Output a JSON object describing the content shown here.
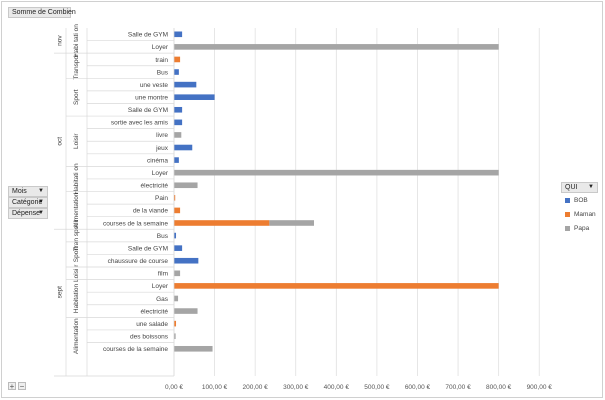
{
  "field_buttons": {
    "value": "Somme de Combien",
    "mois": "Mois",
    "categorie": "Catégorie",
    "depense": "Dépense",
    "qui": "QUI"
  },
  "zoom": {
    "plus": "+",
    "minus": "−"
  },
  "chart_data": {
    "type": "bar",
    "orientation": "horizontal",
    "stacked": true,
    "xlim": [
      0,
      900
    ],
    "x_ticks": [
      "0,00 €",
      "100,00 €",
      "200,00 €",
      "300,00 €",
      "400,00 €",
      "500,00 €",
      "600,00 €",
      "700,00 €",
      "800,00 €",
      "900,00 €"
    ],
    "grid": true,
    "legend_position": "right",
    "series": [
      {
        "name": "BOB",
        "color": "#4472c4"
      },
      {
        "name": "Maman",
        "color": "#ed7d31"
      },
      {
        "name": "Papa",
        "color": "#a5a5a5"
      }
    ],
    "months": [
      {
        "label": "nov",
        "categories": [
          {
            "label": "Habi tati on",
            "items": [
              {
                "label": "Salle de GYM",
                "values": [
                  20,
                  0,
                  0
                ]
              },
              {
                "label": "Loyer",
                "values": [
                  0,
                  0,
                  800
                ]
              }
            ]
          }
        ]
      },
      {
        "label": "oct",
        "categories": [
          {
            "label": "Transport",
            "items": [
              {
                "label": "train",
                "values": [
                  0,
                  15,
                  0
                ]
              },
              {
                "label": "Bus",
                "values": [
                  12,
                  0,
                  0
                ]
              }
            ]
          },
          {
            "label": "Sport",
            "items": [
              {
                "label": "une veste",
                "values": [
                  55,
                  0,
                  0
                ]
              },
              {
                "label": "une montre",
                "values": [
                  100,
                  0,
                  0
                ]
              },
              {
                "label": "Salle de GYM",
                "values": [
                  20,
                  0,
                  0
                ]
              }
            ]
          },
          {
            "label": "Loisir",
            "items": [
              {
                "label": "sortie avec les amis",
                "values": [
                  20,
                  0,
                  0
                ]
              },
              {
                "label": "livre",
                "values": [
                  0,
                  0,
                  18
                ]
              },
              {
                "label": "jeux",
                "values": [
                  45,
                  0,
                  0
                ]
              },
              {
                "label": "cinéma",
                "values": [
                  12,
                  0,
                  0
                ]
              }
            ]
          },
          {
            "label": "Habitati on",
            "items": [
              {
                "label": "Loyer",
                "values": [
                  0,
                  0,
                  800
                ]
              },
              {
                "label": "électricité",
                "values": [
                  0,
                  0,
                  58
                ]
              }
            ]
          },
          {
            "label": "Alimentation",
            "items": [
              {
                "label": "Pain",
                "values": [
                  0,
                  3,
                  0
                ]
              },
              {
                "label": "de la viande",
                "values": [
                  0,
                  15,
                  0
                ]
              },
              {
                "label": "courses de la semaine",
                "values": [
                  0,
                  235,
                  110
                ]
              }
            ]
          }
        ]
      },
      {
        "label": "sept",
        "categories": [
          {
            "label": "Tran spor t",
            "items": [
              {
                "label": "Bus",
                "values": [
                  5,
                  0,
                  0
                ]
              }
            ]
          },
          {
            "label": "Sport",
            "items": [
              {
                "label": "Salle de GYM",
                "values": [
                  20,
                  0,
                  0
                ]
              },
              {
                "label": "chaussure de course",
                "values": [
                  60,
                  0,
                  0
                ]
              }
            ]
          },
          {
            "label": "Loisi r",
            "items": [
              {
                "label": "film",
                "values": [
                  0,
                  0,
                  15
                ]
              }
            ]
          },
          {
            "label": "Habitation",
            "items": [
              {
                "label": "Loyer",
                "values": [
                  0,
                  800,
                  0
                ]
              },
              {
                "label": "Gas",
                "values": [
                  0,
                  0,
                  10
                ]
              },
              {
                "label": "électricité",
                "values": [
                  0,
                  0,
                  58
                ]
              }
            ]
          },
          {
            "label": "Alimentation",
            "items": [
              {
                "label": "une salade",
                "values": [
                  0,
                  5,
                  0
                ]
              },
              {
                "label": "des boissons",
                "values": [
                  0,
                  0,
                  4
                ]
              },
              {
                "label": "courses de la semaine",
                "values": [
                  0,
                  0,
                  95
                ]
              }
            ]
          }
        ]
      }
    ]
  }
}
